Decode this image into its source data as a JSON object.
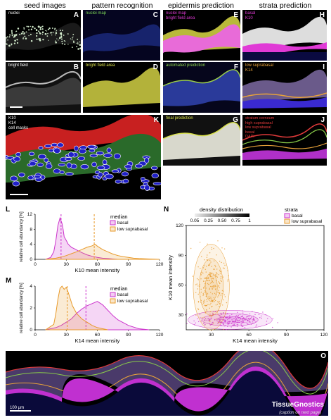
{
  "columns": [
    "seed images",
    "pattern recognition",
    "epidermis prediction",
    "strata prediction"
  ],
  "tiles": [
    {
      "id": "A",
      "label": "nuclei",
      "label_color": "#ffffff",
      "theme": "nuclei"
    },
    {
      "id": "B",
      "label": "bright field",
      "label_color": "#ffffff",
      "theme": "bright"
    },
    {
      "id": "C",
      "label": "nuclei map",
      "label_color": "#7ed957",
      "theme": "nucmap"
    },
    {
      "id": "D",
      "label": "bright field area",
      "label_color": "#d8e04a",
      "theme": "bfarea"
    },
    {
      "id": "E",
      "label": "nuclei map\nbright field area",
      "label_color": "#e03ad6",
      "theme": "pink"
    },
    {
      "id": "F",
      "label": "automated prediction",
      "label_color": "#8ad24a",
      "theme": "auto"
    },
    {
      "id": "G",
      "label": "final prediction",
      "label_color": "#d8e04a",
      "theme": "final"
    },
    {
      "id": "H",
      "label": "basal\nK10",
      "label_color": "#e03ad6",
      "theme": "basalk10"
    },
    {
      "id": "I",
      "label": "low suprabasal\nK14",
      "label_color": "#e8a23a",
      "theme": "lowsupra"
    },
    {
      "id": "J",
      "label": "stratum corneum\nhigh suprabasal\nlow suprabasal\nbasal\nDAPI",
      "label_color": "#e03a3a",
      "theme": "strata"
    },
    {
      "id": "K",
      "label": "K10\nK14\ncell masks",
      "label_color": "#ffffff",
      "theme": "cells"
    },
    {
      "id": "O",
      "label": "",
      "label_color": "#ffffff",
      "theme": "wide"
    }
  ],
  "scale_bar_label": "100 µm",
  "watermark": "TissueGnostics",
  "watermark_sub": "(caption on next page)",
  "colors": {
    "basal": "#cc33cc",
    "low_suprabasal": "#e89a2a"
  },
  "chart_data": [
    {
      "id": "L",
      "type": "area",
      "xlabel": "K10 mean intensity",
      "ylabel": "relative cell abundancy [%]",
      "xlim": [
        0,
        120
      ],
      "ylim": [
        0,
        12
      ],
      "xticks": [
        0,
        30,
        60,
        90,
        120
      ],
      "yticks": [
        0,
        4,
        8,
        12
      ],
      "legend_title": "median",
      "legend_position": "top-right",
      "medians": {
        "basal": 25,
        "low suprabasal": 57
      },
      "series": [
        {
          "name": "basal",
          "color": "#cc33cc",
          "x": [
            10,
            15,
            18,
            20,
            22,
            24,
            26,
            27,
            28,
            30,
            32,
            35,
            38,
            40,
            45,
            50,
            55,
            60,
            65,
            70,
            75,
            80
          ],
          "y": [
            0,
            0.5,
            2,
            5,
            9,
            11,
            9.5,
            8,
            6,
            5,
            4,
            3.2,
            2.8,
            2.5,
            1.8,
            1.2,
            0.8,
            0.5,
            0.3,
            0.2,
            0.1,
            0
          ]
        },
        {
          "name": "low suprabasal",
          "color": "#e89a2a",
          "x": [
            10,
            20,
            25,
            30,
            35,
            40,
            45,
            50,
            55,
            58,
            60,
            65,
            70,
            75,
            80,
            85,
            90,
            95,
            100,
            110,
            120
          ],
          "y": [
            0,
            0.3,
            0.6,
            1,
            1.5,
            2,
            2.6,
            3.2,
            3.6,
            4,
            3.5,
            2.6,
            2,
            1.4,
            1,
            0.7,
            0.5,
            0.3,
            0.2,
            0.1,
            0
          ]
        }
      ]
    },
    {
      "id": "M",
      "type": "area",
      "xlabel": "K14 mean intensity",
      "ylabel": "relative cell abundancy [%]",
      "xlim": [
        0,
        120
      ],
      "ylim": [
        0,
        4
      ],
      "xticks": [
        0,
        30,
        60,
        90,
        120
      ],
      "yticks": [
        0,
        2,
        4
      ],
      "legend_title": "median",
      "legend_position": "top-right",
      "medians": {
        "basal": 49,
        "low suprabasal": 31
      },
      "series": [
        {
          "name": "basal",
          "color": "#cc33cc",
          "x": [
            10,
            20,
            25,
            30,
            35,
            40,
            45,
            50,
            55,
            60,
            65,
            70,
            75,
            80,
            90,
            100,
            110
          ],
          "y": [
            0,
            0.2,
            0.4,
            0.7,
            1,
            1.5,
            1.9,
            2.2,
            2.4,
            2.6,
            2.3,
            1.8,
            1.3,
            0.9,
            0.4,
            0.1,
            0
          ]
        },
        {
          "name": "low suprabasal",
          "color": "#e89a2a",
          "x": [
            10,
            18,
            20,
            22,
            24,
            26,
            28,
            30,
            32,
            34,
            36,
            40,
            45,
            50,
            55,
            60,
            70
          ],
          "y": [
            0,
            0.5,
            1.5,
            2.8,
            3.8,
            4,
            3.7,
            3.9,
            3.4,
            2.8,
            2.2,
            1.5,
            1,
            0.7,
            0.4,
            0.2,
            0
          ]
        }
      ]
    },
    {
      "id": "N",
      "type": "scatter",
      "xlabel": "K14 mean intensity",
      "ylabel": "K10 mean intensity",
      "xlim": [
        10,
        120
      ],
      "ylim": [
        15,
        120
      ],
      "xticks": [
        30,
        60,
        90,
        120
      ],
      "yticks": [
        30,
        60,
        90,
        120
      ],
      "density_legend_title": "density distribution",
      "density_ticks": [
        "0.05",
        "0.25",
        "0.50",
        "0.75",
        "1"
      ],
      "legend_title": "strata",
      "legend_position": "top-right",
      "series": [
        {
          "name": "basal",
          "color": "#cc33cc",
          "center": [
            45,
            25
          ],
          "spread": [
            14,
            4
          ]
        },
        {
          "name": "low suprabasal",
          "color": "#e89a2a",
          "center": [
            30,
            58
          ],
          "spread": [
            6,
            18
          ]
        }
      ]
    }
  ]
}
